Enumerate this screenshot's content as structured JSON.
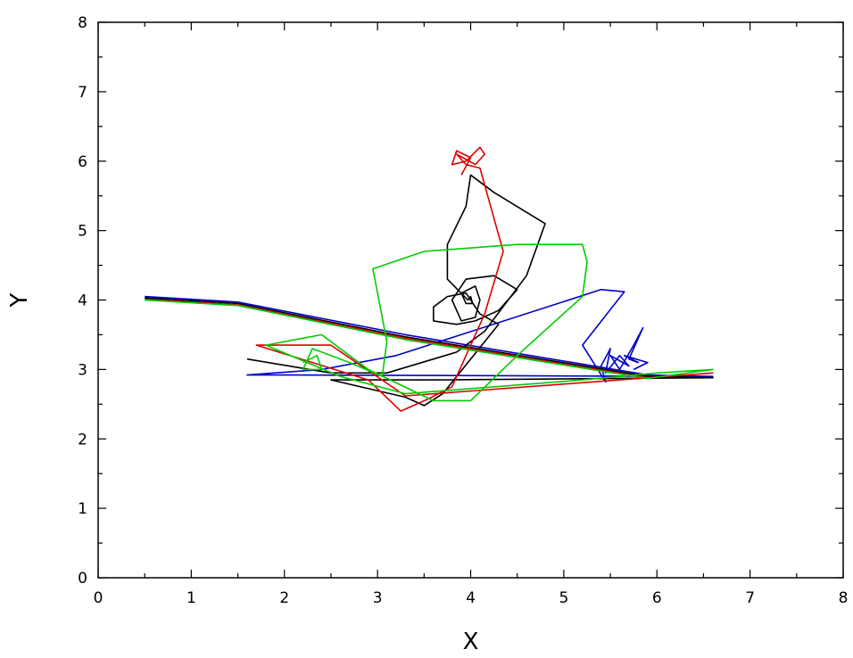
{
  "chart_data": {
    "type": "line",
    "title": "",
    "xlabel": "X",
    "ylabel": "Y",
    "xlim": [
      0,
      8
    ],
    "ylim": [
      0,
      8
    ],
    "xticks": [
      "0",
      "1",
      "2",
      "3",
      "4",
      "5",
      "6",
      "7",
      "8"
    ],
    "yticks": [
      "0",
      "1",
      "2",
      "3",
      "4",
      "5",
      "6",
      "7",
      "8"
    ],
    "grid": false,
    "legend": "none",
    "series": [
      {
        "color": "#0000cc",
        "points": [
          [
            0.5,
            4.05
          ],
          [
            1.5,
            3.97
          ],
          [
            3.3,
            3.5
          ],
          [
            5.9,
            2.92
          ],
          [
            6.6,
            2.9
          ],
          [
            2.1,
            2.92
          ],
          [
            1.6,
            2.92
          ],
          [
            2.4,
            3.0
          ],
          [
            3.2,
            3.2
          ],
          [
            5.4,
            4.15
          ],
          [
            5.65,
            4.12
          ],
          [
            5.2,
            3.35
          ],
          [
            5.45,
            2.82
          ],
          [
            5.4,
            3.05
          ],
          [
            5.5,
            3.3
          ],
          [
            5.45,
            2.95
          ],
          [
            5.6,
            3.2
          ],
          [
            5.7,
            3.05
          ],
          [
            5.5,
            3.2
          ],
          [
            5.6,
            3.0
          ],
          [
            5.75,
            3.35
          ],
          [
            5.85,
            3.6
          ],
          [
            5.7,
            3.15
          ],
          [
            5.8,
            3.1
          ],
          [
            5.65,
            3.2
          ],
          [
            5.9,
            3.1
          ],
          [
            5.75,
            3.0
          ]
        ]
      },
      {
        "color": "#000000",
        "points": [
          [
            0.5,
            4.03
          ],
          [
            1.5,
            3.95
          ],
          [
            3.3,
            3.47
          ],
          [
            5.9,
            2.9
          ],
          [
            6.6,
            2.88
          ],
          [
            3.6,
            2.85
          ],
          [
            2.5,
            2.85
          ],
          [
            3.3,
            2.6
          ],
          [
            3.5,
            2.48
          ],
          [
            3.7,
            2.65
          ],
          [
            4.15,
            3.4
          ],
          [
            4.3,
            3.65
          ],
          [
            4.1,
            3.8
          ],
          [
            3.95,
            4.1
          ],
          [
            3.75,
            4.05
          ],
          [
            3.6,
            3.9
          ],
          [
            3.6,
            3.7
          ],
          [
            3.85,
            3.65
          ],
          [
            4.05,
            3.7
          ],
          [
            4.3,
            3.85
          ],
          [
            4.5,
            4.15
          ],
          [
            4.25,
            4.35
          ],
          [
            3.95,
            4.3
          ],
          [
            3.8,
            4.0
          ],
          [
            3.9,
            3.7
          ],
          [
            4.05,
            3.75
          ],
          [
            4.1,
            4.0
          ],
          [
            4.05,
            4.2
          ],
          [
            3.9,
            4.1
          ],
          [
            3.95,
            3.95
          ],
          [
            4.02,
            3.95
          ],
          [
            4.0,
            4.05
          ],
          [
            3.97,
            4.0
          ],
          [
            3.75,
            4.3
          ],
          [
            3.75,
            4.8
          ],
          [
            3.95,
            5.35
          ],
          [
            4.0,
            5.8
          ],
          [
            4.25,
            5.55
          ],
          [
            4.8,
            5.1
          ],
          [
            4.6,
            4.35
          ],
          [
            4.15,
            3.55
          ],
          [
            3.85,
            3.25
          ],
          [
            3.1,
            2.95
          ],
          [
            2.5,
            2.95
          ],
          [
            1.6,
            3.15
          ]
        ]
      },
      {
        "color": "#dd0000",
        "points": [
          [
            0.5,
            4.01
          ],
          [
            1.5,
            3.93
          ],
          [
            3.3,
            3.45
          ],
          [
            5.9,
            2.88
          ],
          [
            6.6,
            2.95
          ],
          [
            3.3,
            2.62
          ],
          [
            2.5,
            3.35
          ],
          [
            1.7,
            3.35
          ],
          [
            2.3,
            3.1
          ],
          [
            2.9,
            2.85
          ],
          [
            3.25,
            2.4
          ],
          [
            3.55,
            2.58
          ],
          [
            3.8,
            2.75
          ],
          [
            4.15,
            3.8
          ],
          [
            4.35,
            4.7
          ],
          [
            4.1,
            5.9
          ],
          [
            3.95,
            5.95
          ],
          [
            3.85,
            6.1
          ],
          [
            4.05,
            5.95
          ],
          [
            4.15,
            6.1
          ],
          [
            4.1,
            6.2
          ],
          [
            3.95,
            6.0
          ],
          [
            3.8,
            5.95
          ],
          [
            3.85,
            6.15
          ],
          [
            4.0,
            6.05
          ],
          [
            3.9,
            5.8
          ]
        ]
      },
      {
        "color": "#00cc00",
        "points": [
          [
            0.5,
            4.0
          ],
          [
            1.5,
            3.92
          ],
          [
            3.3,
            3.43
          ],
          [
            5.9,
            2.87
          ],
          [
            6.6,
            3.0
          ],
          [
            6.0,
            2.95
          ],
          [
            5.2,
            2.85
          ],
          [
            3.3,
            2.65
          ],
          [
            2.6,
            2.9
          ],
          [
            1.8,
            3.35
          ],
          [
            2.4,
            3.5
          ],
          [
            2.9,
            3.0
          ],
          [
            3.6,
            2.55
          ],
          [
            4.0,
            2.55
          ],
          [
            4.5,
            3.2
          ],
          [
            5.2,
            4.05
          ],
          [
            5.25,
            4.55
          ],
          [
            5.2,
            4.8
          ],
          [
            4.5,
            4.8
          ],
          [
            3.5,
            4.7
          ],
          [
            2.95,
            4.45
          ],
          [
            3.1,
            3.4
          ],
          [
            3.05,
            2.9
          ],
          [
            2.7,
            3.1
          ],
          [
            2.3,
            3.3
          ],
          [
            2.2,
            3.0
          ],
          [
            2.4,
            3.0
          ],
          [
            2.35,
            3.2
          ],
          [
            2.2,
            3.1
          ]
        ]
      }
    ]
  }
}
